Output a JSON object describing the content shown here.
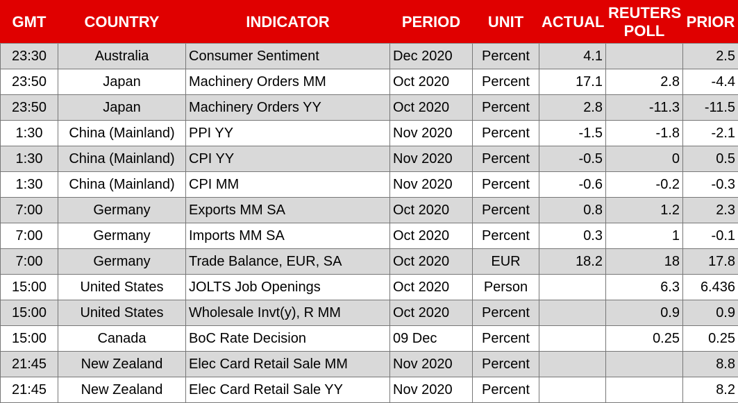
{
  "table": {
    "header": [
      "GMT",
      "COUNTRY",
      "INDICATOR",
      "PERIOD",
      "UNIT",
      "ACTUAL",
      "REUTERS POLL",
      "PRIOR"
    ],
    "rows": [
      [
        "23:30",
        "Australia",
        "Consumer Sentiment",
        "Dec 2020",
        "Percent",
        "4.1",
        null,
        "2.5"
      ],
      [
        "23:50",
        "Japan",
        "Machinery Orders MM",
        "Oct 2020",
        "Percent",
        "17.1",
        "2.8",
        "-4.4"
      ],
      [
        "23:50",
        "Japan",
        "Machinery Orders YY",
        "Oct 2020",
        "Percent",
        "2.8",
        "-11.3",
        "-11.5"
      ],
      [
        "1:30",
        "China (Mainland)",
        "PPI YY",
        "Nov 2020",
        "Percent",
        "-1.5",
        "-1.8",
        "-2.1"
      ],
      [
        "1:30",
        "China (Mainland)",
        "CPI YY",
        "Nov 2020",
        "Percent",
        "-0.5",
        "0",
        "0.5"
      ],
      [
        "1:30",
        "China (Mainland)",
        "CPI MM",
        "Nov 2020",
        "Percent",
        "-0.6",
        "-0.2",
        "-0.3"
      ],
      [
        "7:00",
        "Germany",
        "Exports MM SA",
        "Oct 2020",
        "Percent",
        "0.8",
        "1.2",
        "2.3"
      ],
      [
        "7:00",
        "Germany",
        "Imports MM SA",
        "Oct 2020",
        "Percent",
        "0.3",
        "1",
        "-0.1"
      ],
      [
        "7:00",
        "Germany",
        "Trade Balance, EUR, SA",
        "Oct 2020",
        "EUR",
        "18.2",
        "18",
        "17.8"
      ],
      [
        "15:00",
        "United States",
        "JOLTS Job Openings",
        "Oct 2020",
        "Person",
        null,
        "6.3",
        "6.436"
      ],
      [
        "15:00",
        "United States",
        "Wholesale Invt(y), R MM",
        "Oct 2020",
        "Percent",
        null,
        "0.9",
        "0.9"
      ],
      [
        "15:00",
        "Canada",
        "BoC Rate Decision",
        "09 Dec",
        "Percent",
        null,
        "0.25",
        "0.25"
      ],
      [
        "21:45",
        "New Zealand",
        "Elec Card Retail Sale MM",
        "Nov 2020",
        "Percent",
        null,
        null,
        "8.8"
      ],
      [
        "21:45",
        "New Zealand",
        "Elec Card Retail Sale YY",
        "Nov 2020",
        "Percent",
        null,
        null,
        "8.2"
      ]
    ]
  }
}
